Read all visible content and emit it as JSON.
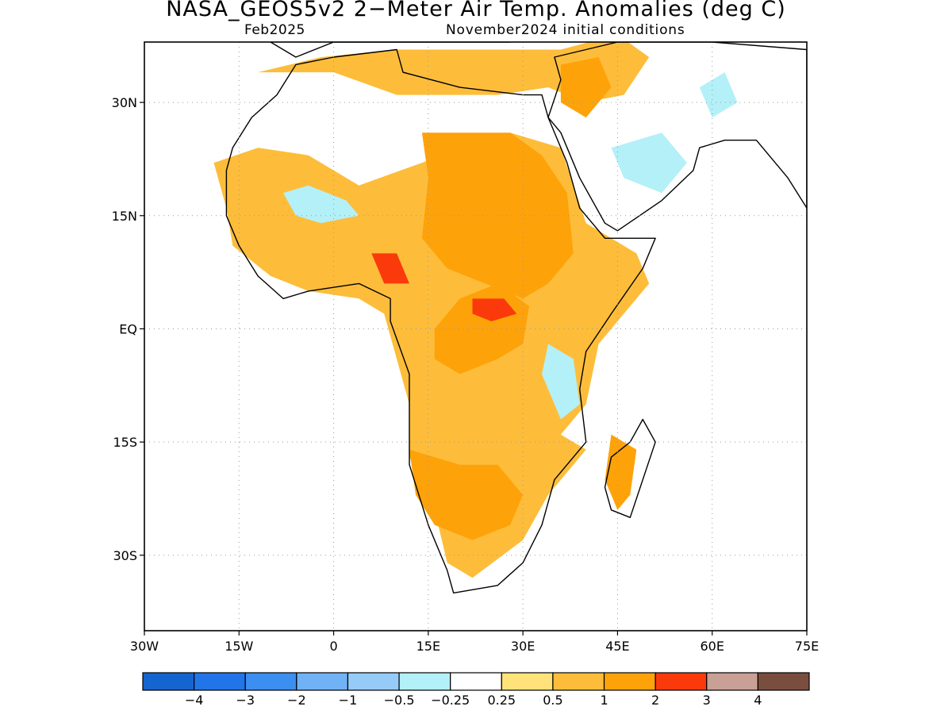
{
  "title": "NASA_GEOS5v2 2−Meter Air Temp. Anomalies (deg C)",
  "valid_month": "Feb2025",
  "initial_conditions": "November2024 initial conditions",
  "map": {
    "lon_range": [
      -30,
      75
    ],
    "lat_range": [
      -40,
      38
    ],
    "lon_ticks": [
      {
        "lon": -30,
        "label": "30W"
      },
      {
        "lon": -15,
        "label": "15W"
      },
      {
        "lon": 0,
        "label": "0"
      },
      {
        "lon": 15,
        "label": "15E"
      },
      {
        "lon": 30,
        "label": "30E"
      },
      {
        "lon": 45,
        "label": "45E"
      },
      {
        "lon": 60,
        "label": "60E"
      },
      {
        "lon": 75,
        "label": "75E"
      }
    ],
    "lat_ticks": [
      {
        "lat": 30,
        "label": "30N"
      },
      {
        "lat": 15,
        "label": "15N"
      },
      {
        "lat": 0,
        "label": "EQ"
      },
      {
        "lat": -15,
        "label": "15S"
      },
      {
        "lat": -30,
        "label": "30S"
      }
    ],
    "grid": "dotted"
  },
  "colorbar": {
    "colors": [
      "#1565d0",
      "#2175e8",
      "#3a8ff0",
      "#70b2f5",
      "#96cbf8",
      "#b4f0f8",
      "#ffffff",
      "#ffe27a",
      "#fdbd3a",
      "#fea20a",
      "#fb3a0c",
      "#c9a095",
      "#7a4e3f"
    ],
    "labels": [
      "−4",
      "−3",
      "−2",
      "−1",
      "−0.5",
      "−0.25",
      "0.25",
      "0.5",
      "1",
      "2",
      "3",
      "4"
    ]
  },
  "anomaly_regions": [
    {
      "class": 8,
      "lonlat": [
        [
          -12,
          34
        ],
        [
          -2,
          36
        ],
        [
          10,
          37
        ],
        [
          24,
          37
        ],
        [
          36,
          37
        ],
        [
          45,
          39
        ],
        [
          50,
          36
        ],
        [
          46,
          31
        ],
        [
          40,
          30
        ],
        [
          34,
          32
        ],
        [
          26,
          31
        ],
        [
          16,
          31
        ],
        [
          10,
          31
        ],
        [
          0,
          34
        ],
        [
          -8,
          34
        ]
      ]
    },
    {
      "class": 8,
      "lonlat": [
        [
          -19,
          22
        ],
        [
          -12,
          24
        ],
        [
          -4,
          23
        ],
        [
          4,
          19
        ],
        [
          14,
          22
        ],
        [
          20,
          24
        ],
        [
          28,
          26
        ],
        [
          36,
          24
        ],
        [
          40,
          14
        ],
        [
          48,
          10
        ],
        [
          50,
          6
        ],
        [
          42,
          -2
        ],
        [
          40,
          -10
        ],
        [
          36,
          -14
        ],
        [
          40,
          -16
        ],
        [
          34,
          -22
        ],
        [
          30,
          -28
        ],
        [
          22,
          -33
        ],
        [
          18,
          -31
        ],
        [
          16,
          -24
        ],
        [
          12,
          -17
        ],
        [
          12,
          -10
        ],
        [
          10,
          -4
        ],
        [
          8,
          2
        ],
        [
          4,
          4
        ],
        [
          -4,
          5
        ],
        [
          -10,
          7
        ],
        [
          -16,
          11
        ],
        [
          -17,
          16
        ]
      ]
    },
    {
      "class": 9,
      "lonlat": [
        [
          14,
          26
        ],
        [
          28,
          26
        ],
        [
          33,
          23
        ],
        [
          37,
          18
        ],
        [
          38,
          10
        ],
        [
          34,
          6
        ],
        [
          30,
          4
        ],
        [
          24,
          6
        ],
        [
          18,
          8
        ],
        [
          14,
          12
        ],
        [
          15,
          20
        ]
      ]
    },
    {
      "class": 9,
      "lonlat": [
        [
          16,
          0
        ],
        [
          20,
          4
        ],
        [
          26,
          6
        ],
        [
          31,
          3
        ],
        [
          30,
          -2
        ],
        [
          26,
          -4
        ],
        [
          20,
          -6
        ],
        [
          16,
          -4
        ]
      ]
    },
    {
      "class": 9,
      "lonlat": [
        [
          12,
          -16
        ],
        [
          20,
          -18
        ],
        [
          26,
          -18
        ],
        [
          30,
          -22
        ],
        [
          28,
          -26
        ],
        [
          22,
          -28
        ],
        [
          16,
          -26
        ],
        [
          13,
          -22
        ]
      ]
    },
    {
      "class": 9,
      "lonlat": [
        [
          44,
          -14
        ],
        [
          48,
          -16
        ],
        [
          47,
          -22
        ],
        [
          45,
          -24
        ],
        [
          43,
          -20
        ]
      ]
    },
    {
      "class": 9,
      "lonlat": [
        [
          36,
          35
        ],
        [
          42,
          36
        ],
        [
          44,
          32
        ],
        [
          40,
          28
        ],
        [
          36,
          30
        ]
      ]
    },
    {
      "class": 10,
      "lonlat": [
        [
          6,
          10
        ],
        [
          10,
          10
        ],
        [
          12,
          6
        ],
        [
          8,
          6
        ]
      ]
    },
    {
      "class": 10,
      "lonlat": [
        [
          22,
          4
        ],
        [
          27,
          4
        ],
        [
          29,
          2
        ],
        [
          25,
          1
        ],
        [
          22,
          2
        ]
      ]
    },
    {
      "class": 5,
      "lonlat": [
        [
          -8,
          18
        ],
        [
          -4,
          19
        ],
        [
          2,
          17
        ],
        [
          4,
          15
        ],
        [
          -2,
          14
        ],
        [
          -6,
          15
        ]
      ]
    },
    {
      "class": 5,
      "lonlat": [
        [
          44,
          24
        ],
        [
          52,
          26
        ],
        [
          56,
          22
        ],
        [
          52,
          18
        ],
        [
          46,
          20
        ]
      ]
    },
    {
      "class": 5,
      "lonlat": [
        [
          34,
          -2
        ],
        [
          38,
          -4
        ],
        [
          39,
          -10
        ],
        [
          36,
          -12
        ],
        [
          33,
          -6
        ]
      ]
    },
    {
      "class": 5,
      "lonlat": [
        [
          58,
          32
        ],
        [
          62,
          34
        ],
        [
          64,
          30
        ],
        [
          60,
          28
        ]
      ]
    }
  ],
  "land_outlines": [
    {
      "name": "africa",
      "lonlat": [
        [
          -17,
          21
        ],
        [
          -16,
          24
        ],
        [
          -13,
          28
        ],
        [
          -9,
          31
        ],
        [
          -6,
          35
        ],
        [
          0,
          36
        ],
        [
          10,
          37
        ],
        [
          11,
          34
        ],
        [
          20,
          32
        ],
        [
          30,
          31
        ],
        [
          33,
          31
        ],
        [
          34,
          28
        ],
        [
          37,
          22
        ],
        [
          39,
          16
        ],
        [
          43,
          12
        ],
        [
          51,
          12
        ],
        [
          49,
          8
        ],
        [
          44,
          2
        ],
        [
          40,
          -3
        ],
        [
          39,
          -8
        ],
        [
          40,
          -15
        ],
        [
          35,
          -20
        ],
        [
          33,
          -26
        ],
        [
          30,
          -31
        ],
        [
          26,
          -34
        ],
        [
          19,
          -35
        ],
        [
          18,
          -32
        ],
        [
          15,
          -26
        ],
        [
          12,
          -18
        ],
        [
          12,
          -6
        ],
        [
          9,
          1
        ],
        [
          9,
          4
        ],
        [
          4,
          6
        ],
        [
          -4,
          5
        ],
        [
          -8,
          4
        ],
        [
          -12,
          7
        ],
        [
          -15,
          11
        ],
        [
          -17,
          15
        ]
      ]
    },
    {
      "name": "arabia-asia",
      "lonlat": [
        [
          34,
          28
        ],
        [
          36,
          33
        ],
        [
          35,
          36
        ],
        [
          45,
          38
        ],
        [
          60,
          38
        ],
        [
          75,
          37
        ],
        [
          75,
          16
        ],
        [
          72,
          20
        ],
        [
          67,
          25
        ],
        [
          62,
          25
        ],
        [
          58,
          24
        ],
        [
          57,
          21
        ],
        [
          52,
          17
        ],
        [
          45,
          13
        ],
        [
          43,
          14
        ],
        [
          39,
          20
        ],
        [
          36,
          26
        ]
      ]
    },
    {
      "name": "madagascar",
      "lonlat": [
        [
          49,
          -12
        ],
        [
          51,
          -15
        ],
        [
          47,
          -25
        ],
        [
          44,
          -24
        ],
        [
          43,
          -21
        ],
        [
          44,
          -17
        ],
        [
          47,
          -15
        ]
      ]
    },
    {
      "name": "europe",
      "lonlat": [
        [
          -10,
          38
        ],
        [
          -6,
          36
        ],
        [
          0,
          38
        ],
        [
          10,
          38
        ],
        [
          16,
          38
        ],
        [
          24,
          38
        ],
        [
          28,
          38
        ]
      ]
    }
  ]
}
